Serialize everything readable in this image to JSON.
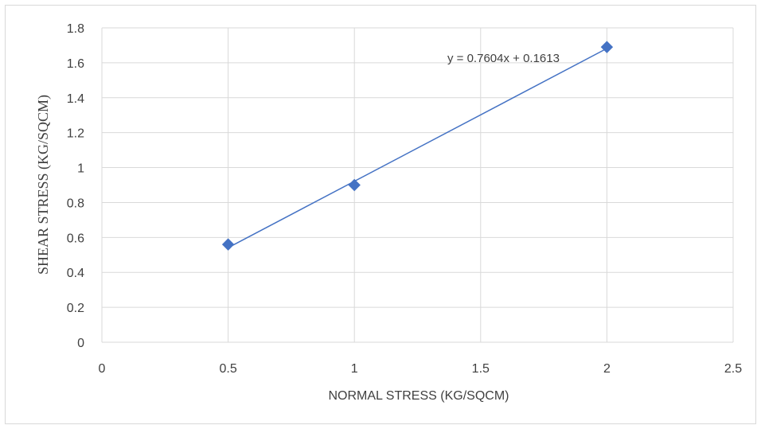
{
  "chart_data": {
    "type": "scatter",
    "title": "",
    "xlabel": "NORMAL STRESS (KG/SQCM)",
    "ylabel": "SHEAR STRESS (KG/SQCM)",
    "xlim": [
      0,
      2.5
    ],
    "ylim": [
      0,
      1.8
    ],
    "x_ticks": [
      "0",
      "0.5",
      "1",
      "1.5",
      "2",
      "2.5"
    ],
    "y_ticks": [
      "0",
      "0.2",
      "0.4",
      "0.6",
      "0.8",
      "1",
      "1.2",
      "1.4",
      "1.6",
      "1.8"
    ],
    "grid": true,
    "legend": "none",
    "series": [
      {
        "x": [
          0.5,
          1,
          2
        ],
        "values": [
          0.56,
          0.9,
          1.69
        ],
        "marker": "diamond",
        "color": "#4472c4"
      }
    ],
    "trendline": {
      "type": "linear",
      "slope": 0.7604,
      "intercept": 0.1613,
      "equation": "y = 0.7604x + 0.1613",
      "color": "#4472c4"
    },
    "colors": {
      "gridline": "#d9d9d9",
      "text": "#404040",
      "frame": "#d9d9d9"
    }
  }
}
